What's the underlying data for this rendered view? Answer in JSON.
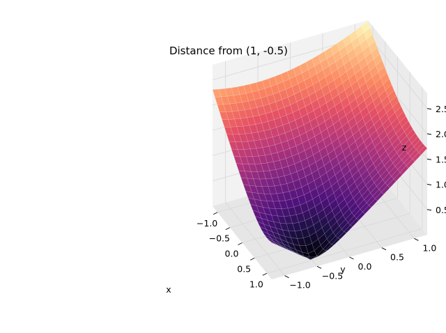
{
  "chart_data": {
    "type": "surface3d",
    "title": "Distance from (1, -0.5)",
    "function": "sqrt((x-1)^2 + (y+0.5)^2)",
    "center": {
      "x": 1,
      "y": -0.5
    },
    "x_range": [
      -1.2,
      1.2
    ],
    "y_range": [
      -1.2,
      1.2
    ],
    "grid_steps": 25,
    "z_range": [
      0.0,
      2.8
    ],
    "colormap": "magma",
    "xlabel": "x",
    "ylabel": "y",
    "zlabel": "z",
    "x_ticks": [
      "−1.0",
      "−0.5",
      "0.0",
      "0.5",
      "1.0"
    ],
    "x_tick_values": [
      -1.0,
      -0.5,
      0.0,
      0.5,
      1.0
    ],
    "y_ticks": [
      "−1.0",
      "−0.5",
      "0.0",
      "0.5",
      "1.0"
    ],
    "y_tick_values": [
      -1.0,
      -0.5,
      0.0,
      0.5,
      1.0
    ],
    "z_ticks": [
      "0.5",
      "1.0",
      "1.5",
      "2.0",
      "2.5"
    ],
    "z_tick_values": [
      0.5,
      1.0,
      1.5,
      2.0,
      2.5
    ],
    "pane_color": "#f2f2f2",
    "grid": true
  }
}
